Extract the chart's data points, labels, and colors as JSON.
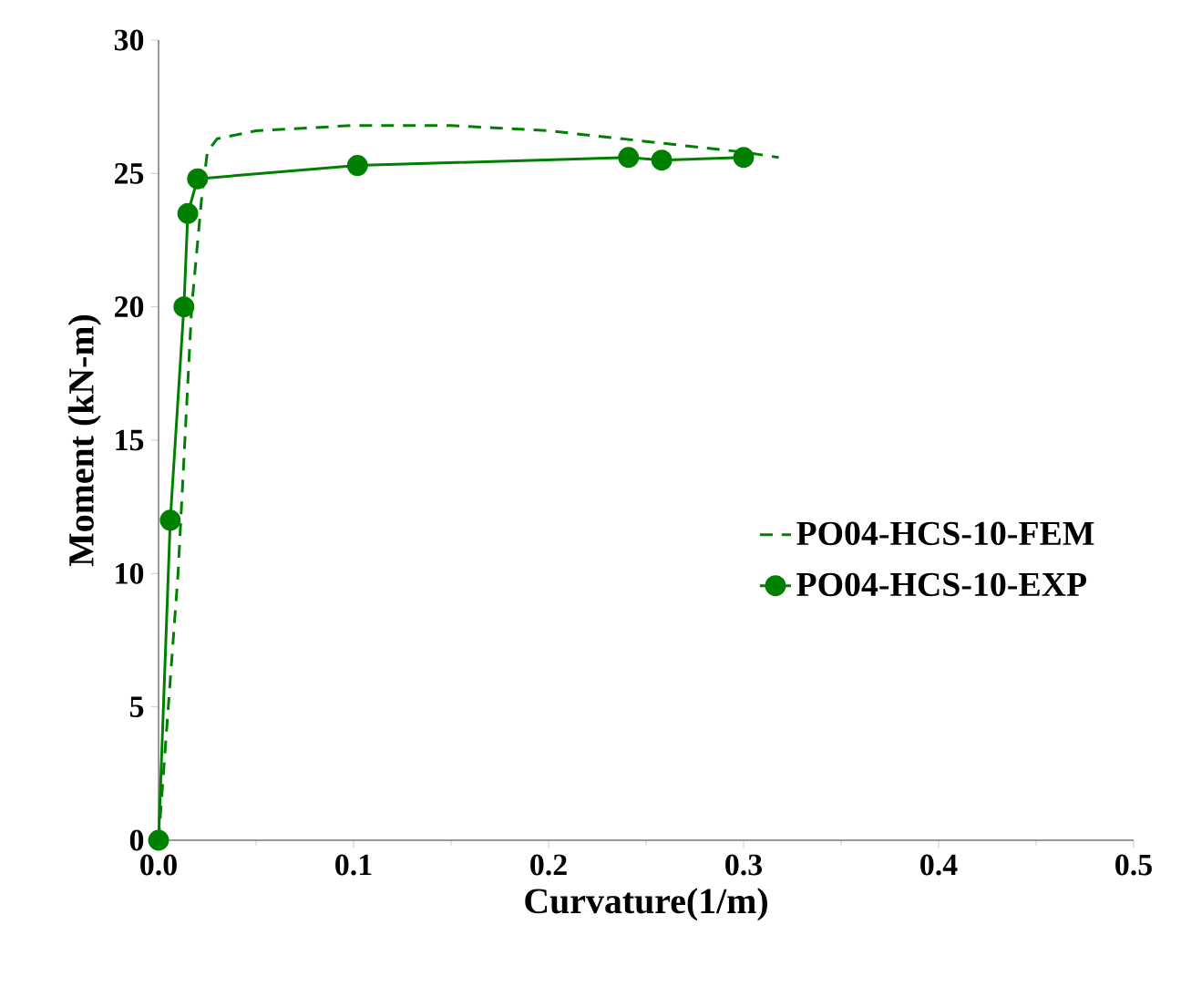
{
  "chart_data": {
    "type": "line",
    "xlabel": "Curvature(1/m)",
    "ylabel": "Moment (kN-m)",
    "xlim": [
      0,
      0.5
    ],
    "ylim": [
      0,
      30
    ],
    "xticks": [
      {
        "value": 0,
        "label": "0.0"
      },
      0.1,
      0.2,
      0.3,
      0.4,
      0.5
    ],
    "yticks": [
      0,
      5,
      10,
      15,
      20,
      25,
      30
    ],
    "legend": "right",
    "grid": false,
    "series": [
      {
        "name": "PO04-HCS-10-FEM",
        "color": "#008000",
        "line_style": "dashed",
        "marker": "none",
        "x": [
          0,
          0.01,
          0.017,
          0.022,
          0.025,
          0.03,
          0.05,
          0.1,
          0.15,
          0.2,
          0.25,
          0.3,
          0.318
        ],
        "values": [
          0,
          10,
          20,
          24,
          25.8,
          26.3,
          26.6,
          26.8,
          26.8,
          26.6,
          26.2,
          25.8,
          25.6
        ]
      },
      {
        "name": "PO04-HCS-10-EXP",
        "color": "#008000",
        "line_style": "solid",
        "marker": "circle",
        "x": [
          0,
          0.006,
          0.013,
          0.015,
          0.02,
          0.102,
          0.241,
          0.258,
          0.3
        ],
        "values": [
          0,
          12,
          20,
          23.5,
          24.8,
          25.3,
          25.6,
          25.5,
          25.6
        ]
      }
    ]
  }
}
